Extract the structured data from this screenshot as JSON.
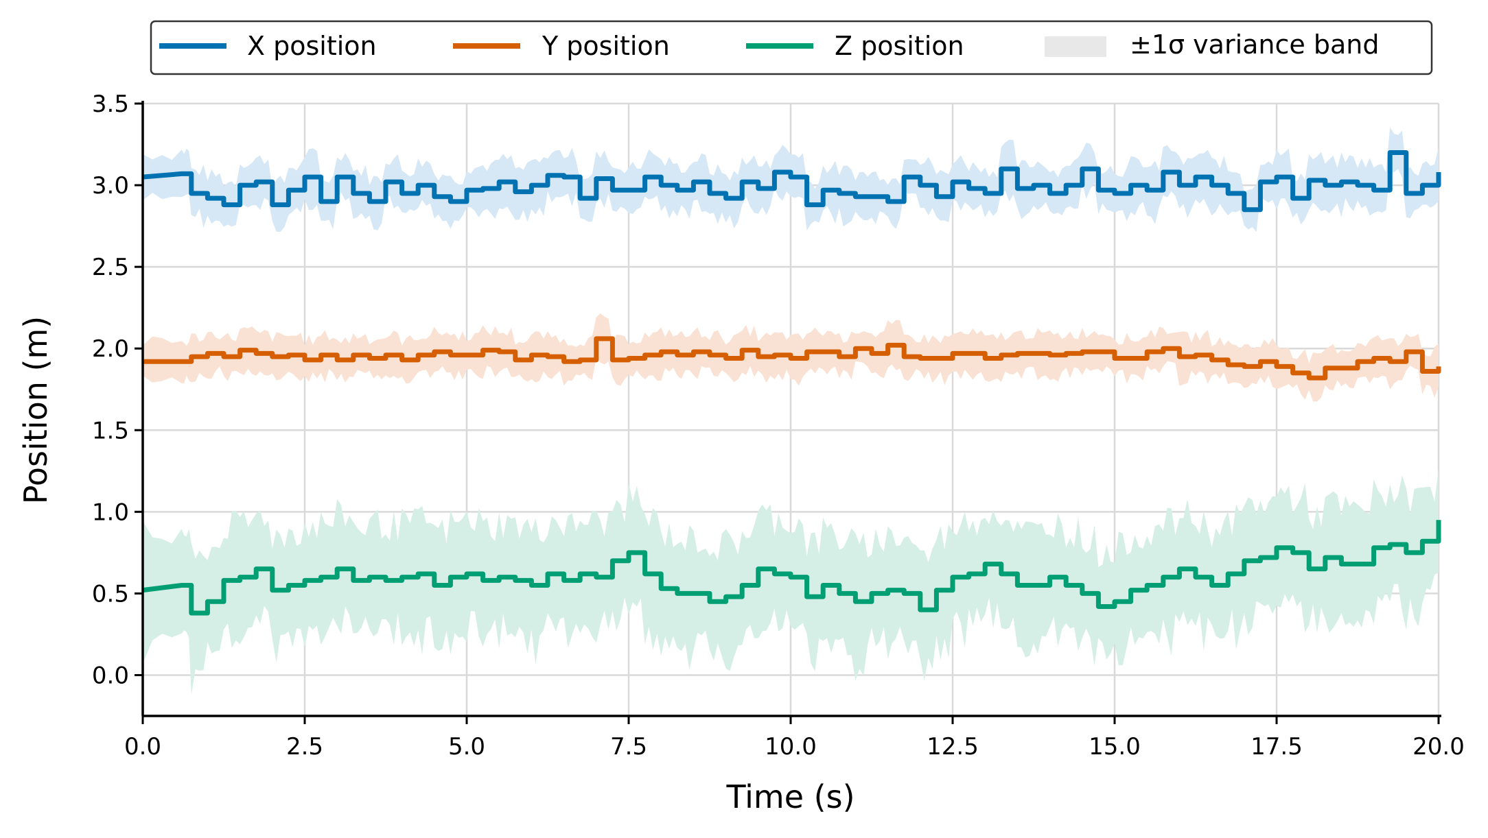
{
  "chart_data": {
    "type": "line",
    "title": "",
    "xlabel": "Time (s)",
    "ylabel": "Position (m)",
    "xlim": [
      0,
      20
    ],
    "ylim": [
      -0.25,
      3.5
    ],
    "xticks": [
      "0.0",
      "2.5",
      "5.0",
      "7.5",
      "10.0",
      "12.5",
      "15.0",
      "17.5",
      "20.0"
    ],
    "yticks": [
      "0.0",
      "0.5",
      "1.0",
      "1.5",
      "2.0",
      "2.5",
      "3.0",
      "3.5"
    ],
    "grid": true,
    "legend_placement": "top-center, outside plot",
    "band_label": "±1σ variance band",
    "band_color": "#e8e8e8",
    "t": [
      0,
      0.6,
      0.75,
      1.0,
      1.25,
      1.5,
      1.75,
      2.0,
      2.25,
      2.5,
      2.75,
      3.0,
      3.25,
      3.5,
      3.75,
      4.0,
      4.25,
      4.5,
      4.75,
      5.0,
      5.25,
      5.5,
      5.75,
      6.0,
      6.25,
      6.5,
      6.75,
      7.0,
      7.25,
      7.5,
      7.75,
      8.0,
      8.25,
      8.5,
      8.75,
      9.0,
      9.25,
      9.5,
      9.75,
      10.0,
      10.25,
      10.5,
      10.75,
      11.0,
      11.25,
      11.5,
      11.75,
      12.0,
      12.25,
      12.5,
      12.75,
      13.0,
      13.25,
      13.5,
      13.75,
      14.0,
      14.25,
      14.5,
      14.75,
      15.0,
      15.25,
      15.5,
      15.75,
      16.0,
      16.25,
      16.5,
      16.75,
      17.0,
      17.25,
      17.5,
      17.75,
      18.0,
      18.25,
      18.5,
      18.75,
      19.0,
      19.25,
      19.5,
      19.75,
      20.0
    ],
    "series": [
      {
        "name": "X position",
        "color": "#0072b2",
        "band_color": "#d6e7f5",
        "sigma": 0.14,
        "values": [
          3.05,
          3.07,
          2.95,
          2.92,
          2.88,
          3.0,
          3.02,
          2.88,
          2.97,
          3.05,
          2.9,
          3.05,
          2.95,
          2.9,
          3.02,
          2.95,
          3.0,
          2.93,
          2.9,
          2.97,
          2.98,
          3.02,
          2.96,
          3.0,
          3.06,
          3.05,
          2.92,
          3.04,
          2.97,
          2.97,
          3.05,
          3.0,
          2.97,
          3.02,
          2.95,
          2.92,
          3.02,
          2.98,
          3.08,
          3.05,
          2.88,
          2.97,
          2.95,
          2.93,
          2.93,
          2.9,
          3.05,
          3.0,
          2.93,
          3.02,
          2.98,
          2.95,
          3.1,
          2.98,
          3.0,
          2.95,
          3.0,
          3.1,
          2.97,
          2.95,
          3.0,
          2.97,
          3.08,
          3.0,
          3.05,
          3.0,
          2.95,
          2.85,
          3.02,
          3.05,
          2.92,
          3.03,
          3.0,
          3.02,
          3.0,
          2.97,
          3.2,
          2.95,
          3.0,
          3.08
        ]
      },
      {
        "name": "Y position",
        "color": "#d55e00",
        "band_color": "#f9e2d3",
        "sigma": 0.12,
        "values": [
          1.92,
          1.92,
          1.95,
          1.97,
          1.95,
          1.99,
          1.97,
          1.95,
          1.96,
          1.93,
          1.96,
          1.93,
          1.96,
          1.94,
          1.96,
          1.93,
          1.96,
          1.98,
          1.96,
          1.96,
          1.99,
          1.98,
          1.93,
          1.96,
          1.95,
          1.92,
          1.93,
          2.06,
          1.93,
          1.94,
          1.96,
          1.98,
          1.96,
          1.98,
          1.96,
          1.94,
          1.99,
          1.95,
          1.96,
          1.94,
          1.98,
          1.98,
          1.95,
          2.0,
          1.97,
          2.02,
          1.95,
          1.94,
          1.94,
          1.97,
          1.97,
          1.94,
          1.96,
          1.97,
          1.97,
          1.96,
          1.97,
          1.98,
          1.98,
          1.94,
          1.94,
          1.98,
          2.0,
          1.95,
          1.96,
          1.93,
          1.9,
          1.89,
          1.92,
          1.89,
          1.85,
          1.82,
          1.88,
          1.88,
          1.92,
          1.94,
          1.92,
          1.98,
          1.86,
          1.89
        ]
      },
      {
        "name": "Z position",
        "color": "#009e73",
        "band_color": "#d5eee6",
        "sigma": 0.33,
        "values": [
          0.52,
          0.55,
          0.38,
          0.45,
          0.58,
          0.6,
          0.65,
          0.52,
          0.55,
          0.58,
          0.6,
          0.65,
          0.58,
          0.6,
          0.58,
          0.6,
          0.62,
          0.55,
          0.6,
          0.62,
          0.58,
          0.6,
          0.58,
          0.55,
          0.62,
          0.58,
          0.62,
          0.6,
          0.7,
          0.75,
          0.62,
          0.53,
          0.5,
          0.5,
          0.45,
          0.48,
          0.55,
          0.65,
          0.62,
          0.6,
          0.48,
          0.55,
          0.5,
          0.45,
          0.5,
          0.52,
          0.5,
          0.4,
          0.52,
          0.6,
          0.62,
          0.68,
          0.62,
          0.55,
          0.55,
          0.6,
          0.55,
          0.5,
          0.42,
          0.45,
          0.52,
          0.55,
          0.6,
          0.65,
          0.6,
          0.55,
          0.62,
          0.7,
          0.72,
          0.78,
          0.75,
          0.65,
          0.72,
          0.68,
          0.68,
          0.78,
          0.8,
          0.75,
          0.82,
          0.95
        ]
      }
    ]
  }
}
